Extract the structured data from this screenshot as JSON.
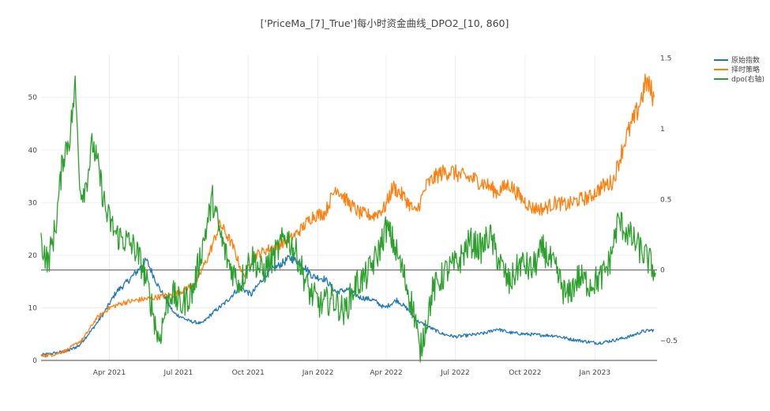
{
  "chart_data": {
    "type": "line",
    "title": "['PriceMa_[7]_True']每小时资金曲线_DPO2_[10, 860]",
    "xlabel": "",
    "ylabel": "",
    "x_tick_labels": [
      "Apr 2021",
      "Jul 2021",
      "Oct 2021",
      "Jan 2022",
      "Apr 2022",
      "Jul 2022",
      "Oct 2022",
      "Jan 2023"
    ],
    "y_left": {
      "ticks": [
        0,
        10,
        20,
        30,
        40,
        50
      ],
      "range": [
        0,
        58
      ]
    },
    "y_right": {
      "ticks": [
        -0.5,
        0,
        0.5,
        1,
        1.5
      ],
      "tick_labels": [
        "−0.5",
        "0",
        "0.5",
        "1",
        "1.5"
      ],
      "range": [
        -0.64,
        1.52
      ]
    },
    "grid": true,
    "legend_position": "top-right",
    "series": [
      {
        "name": "原始指数",
        "axis": "left",
        "color": "#1f77b4",
        "x": [
          "2021-01-01",
          "2021-01-20",
          "2021-02-05",
          "2021-02-20",
          "2021-03-10",
          "2021-03-25",
          "2021-04-10",
          "2021-04-25",
          "2021-05-08",
          "2021-05-20",
          "2021-06-05",
          "2021-06-25",
          "2021-07-15",
          "2021-08-01",
          "2021-08-15",
          "2021-09-01",
          "2021-09-20",
          "2021-10-05",
          "2021-10-25",
          "2021-11-10",
          "2021-11-25",
          "2021-12-10",
          "2021-12-25",
          "2022-01-10",
          "2022-01-25",
          "2022-02-10",
          "2022-02-25",
          "2022-03-15",
          "2022-03-30",
          "2022-04-15",
          "2022-05-01",
          "2022-05-12",
          "2022-06-01",
          "2022-06-15",
          "2022-07-01",
          "2022-07-20",
          "2022-08-10",
          "2022-08-25",
          "2022-09-10",
          "2022-10-01",
          "2022-10-25",
          "2022-11-10",
          "2022-12-01",
          "2022-12-20",
          "2023-01-05",
          "2023-01-25",
          "2023-02-15",
          "2023-03-05",
          "2023-03-20"
        ],
        "y": [
          1.0,
          1.4,
          1.8,
          2.8,
          6.0,
          9.0,
          13.0,
          15.0,
          17.0,
          19.0,
          14.0,
          9.0,
          7.5,
          7.0,
          9.0,
          11.0,
          14.0,
          12.5,
          16.5,
          18.0,
          19.5,
          18.5,
          16.0,
          15.5,
          13.0,
          13.5,
          12.0,
          11.5,
          10.0,
          11.5,
          9.5,
          7.5,
          6.0,
          5.0,
          4.5,
          4.8,
          5.2,
          6.0,
          5.3,
          5.0,
          4.8,
          4.7,
          4.0,
          3.6,
          3.3,
          3.8,
          4.5,
          5.5,
          5.8
        ]
      },
      {
        "name": "择时策略",
        "axis": "left",
        "color": "#ff7f0e",
        "x": [
          "2021-01-01",
          "2021-01-20",
          "2021-02-05",
          "2021-02-25",
          "2021-03-15",
          "2021-04-01",
          "2021-04-20",
          "2021-05-10",
          "2021-05-25",
          "2021-06-10",
          "2021-06-25",
          "2021-07-10",
          "2021-07-25",
          "2021-08-10",
          "2021-08-25",
          "2021-09-10",
          "2021-09-25",
          "2021-10-10",
          "2021-10-25",
          "2021-11-10",
          "2021-11-25",
          "2021-12-10",
          "2021-12-25",
          "2022-01-10",
          "2022-01-25",
          "2022-02-10",
          "2022-02-25",
          "2022-03-15",
          "2022-03-30",
          "2022-04-10",
          "2022-04-25",
          "2022-05-10",
          "2022-05-25",
          "2022-06-10",
          "2022-06-25",
          "2022-07-10",
          "2022-07-25",
          "2022-08-10",
          "2022-08-25",
          "2022-09-10",
          "2022-09-25",
          "2022-10-10",
          "2022-10-25",
          "2022-11-10",
          "2022-11-25",
          "2022-12-10",
          "2022-12-25",
          "2023-01-10",
          "2023-01-25",
          "2023-02-10",
          "2023-02-25",
          "2023-03-10",
          "2023-03-20"
        ],
        "y": [
          0.8,
          1.2,
          2.0,
          4.0,
          8.0,
          10.0,
          11.0,
          11.5,
          11.8,
          12.2,
          12.5,
          13.5,
          15.0,
          20.0,
          26.0,
          22.0,
          16.0,
          20.0,
          21.0,
          22.0,
          23.0,
          25.0,
          27.5,
          28.0,
          33.0,
          30.0,
          28.0,
          27.5,
          29.0,
          33.0,
          31.0,
          28.0,
          33.5,
          35.5,
          36.0,
          35.0,
          34.5,
          33.5,
          32.0,
          33.5,
          31.0,
          29.0,
          28.8,
          30.0,
          29.5,
          30.5,
          31.0,
          33.0,
          34.0,
          42.0,
          47.0,
          53.0,
          50.0
        ]
      },
      {
        "name": "dpo(右轴)",
        "axis": "right",
        "color": "#2ca02c",
        "x": [
          "2021-01-01",
          "2021-01-10",
          "2021-01-20",
          "2021-01-30",
          "2021-02-08",
          "2021-02-15",
          "2021-02-22",
          "2021-03-01",
          "2021-03-10",
          "2021-03-18",
          "2021-03-28",
          "2021-04-10",
          "2021-04-25",
          "2021-05-05",
          "2021-05-15",
          "2021-05-25",
          "2021-06-05",
          "2021-06-20",
          "2021-07-05",
          "2021-07-20",
          "2021-08-01",
          "2021-08-15",
          "2021-08-25",
          "2021-09-05",
          "2021-09-20",
          "2021-10-05",
          "2021-10-20",
          "2021-11-05",
          "2021-11-20",
          "2021-12-05",
          "2021-12-20",
          "2022-01-05",
          "2022-01-20",
          "2022-02-05",
          "2022-02-20",
          "2022-03-05",
          "2022-03-20",
          "2022-04-01",
          "2022-04-10",
          "2022-04-25",
          "2022-05-10",
          "2022-05-15",
          "2022-06-01",
          "2022-06-20",
          "2022-07-05",
          "2022-07-20",
          "2022-08-05",
          "2022-08-15",
          "2022-08-25",
          "2022-09-10",
          "2022-09-25",
          "2022-10-10",
          "2022-10-25",
          "2022-11-10",
          "2022-11-25",
          "2022-12-10",
          "2022-12-25",
          "2023-01-10",
          "2023-01-20",
          "2023-02-01",
          "2023-02-15",
          "2023-03-01",
          "2023-03-15",
          "2023-03-22"
        ],
        "y": [
          0.2,
          0.05,
          0.3,
          0.8,
          0.95,
          1.3,
          0.55,
          0.6,
          0.9,
          0.7,
          0.4,
          0.25,
          0.2,
          0.15,
          0.02,
          -0.2,
          -0.5,
          -0.15,
          -0.25,
          -0.15,
          0.15,
          0.5,
          0.25,
          0.05,
          -0.1,
          0.1,
          -0.02,
          0.1,
          0.25,
          0.1,
          -0.15,
          -0.25,
          -0.2,
          -0.3,
          -0.1,
          -0.05,
          0.1,
          0.3,
          0.2,
          -0.05,
          -0.35,
          -0.6,
          -0.15,
          0.0,
          0.05,
          0.2,
          0.15,
          0.25,
          0.1,
          -0.1,
          0.05,
          0.0,
          0.15,
          0.0,
          -0.2,
          -0.05,
          -0.1,
          -0.05,
          0.05,
          0.35,
          0.25,
          0.15,
          0.05,
          -0.02
        ]
      }
    ]
  }
}
